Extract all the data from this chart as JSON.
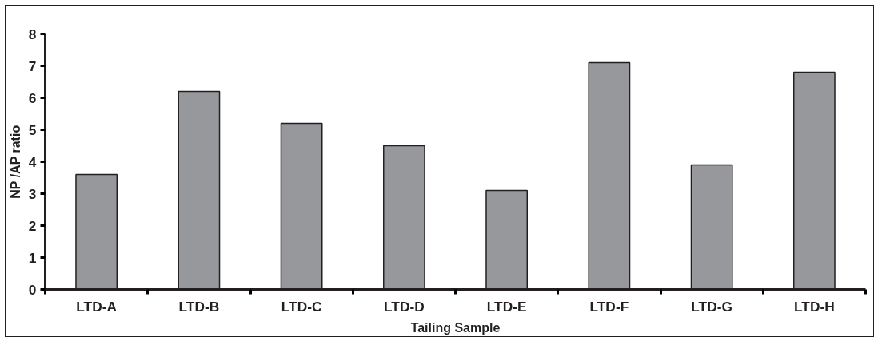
{
  "chart_data": {
    "type": "bar",
    "xlabel": "Tailing Sample",
    "ylabel": "NP /AP ratio",
    "categories": [
      "LTD-A",
      "LTD-B",
      "LTD-C",
      "LTD-D",
      "LTD-E",
      "LTD-F",
      "LTD-G",
      "LTD-H"
    ],
    "values": [
      3.6,
      6.2,
      5.2,
      4.5,
      3.1,
      7.1,
      3.9,
      6.8
    ],
    "color": "#97989c",
    "ylim": [
      0,
      8
    ],
    "yticks": [
      0,
      1,
      2,
      3,
      4,
      5,
      6,
      7,
      8
    ],
    "grid": false
  }
}
